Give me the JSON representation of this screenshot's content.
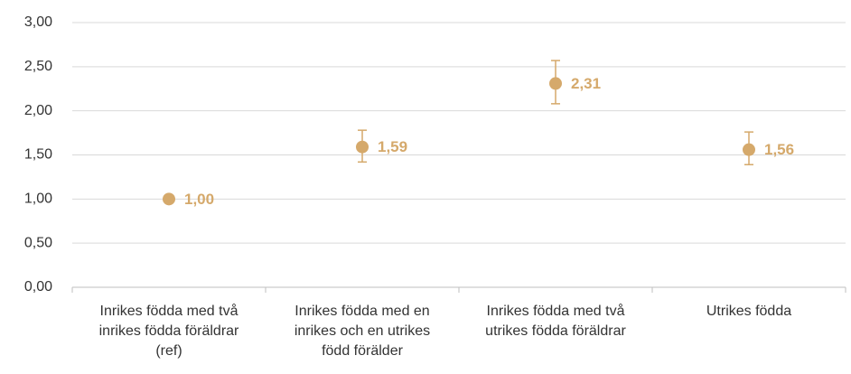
{
  "chart_data": {
    "type": "scatter",
    "categories": [
      "Inrikes födda med två inrikes födda föräldrar (ref)",
      "Inrikes födda med en inrikes och en utrikes född förälder",
      "Inrikes födda med två utrikes födda föräldrar",
      "Utrikes födda"
    ],
    "values": [
      1.0,
      1.59,
      2.31,
      1.56
    ],
    "value_labels": [
      "1,00",
      "1,59",
      "2,31",
      "1,56"
    ],
    "lower": [
      null,
      1.42,
      2.08,
      1.39
    ],
    "upper": [
      null,
      1.78,
      2.57,
      1.76
    ],
    "color": "#d5a96b",
    "ylim": [
      0,
      3
    ],
    "yticks": [
      {
        "value": 0,
        "label": "0,00"
      },
      {
        "value": 0.5,
        "label": "0,50"
      },
      {
        "value": 1,
        "label": "1,00"
      },
      {
        "value": 1.5,
        "label": "1,50"
      },
      {
        "value": 2,
        "label": "2,00"
      },
      {
        "value": 2.5,
        "label": "2,50"
      },
      {
        "value": 3,
        "label": "3,00"
      }
    ],
    "grid": true
  }
}
